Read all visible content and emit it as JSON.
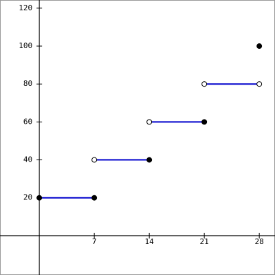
{
  "chart_data": {
    "type": "step",
    "xlim": [
      -5,
      30
    ],
    "ylim": [
      -20.7,
      124.3
    ],
    "xticks": [
      7,
      14,
      21,
      28
    ],
    "yticks": [
      20,
      40,
      60,
      80,
      100,
      120
    ],
    "color": "#0000cc",
    "segments": [
      {
        "x": [
          0,
          7
        ],
        "y": 20,
        "closed": [
          true,
          true
        ]
      },
      {
        "x": [
          7,
          14
        ],
        "y": 40,
        "closed": [
          false,
          true
        ]
      },
      {
        "x": [
          14,
          21
        ],
        "y": 60,
        "closed": [
          false,
          true
        ]
      },
      {
        "x": [
          21,
          28
        ],
        "y": 80,
        "closed": [
          false,
          false
        ]
      }
    ],
    "points": [
      {
        "x": 28,
        "y": 100,
        "closed": true
      }
    ]
  }
}
